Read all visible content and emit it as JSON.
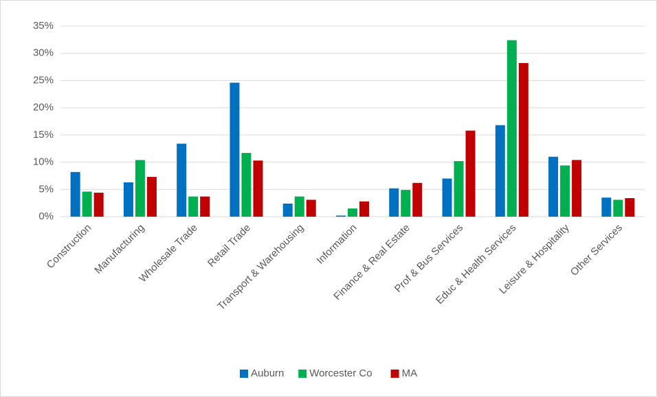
{
  "chart_data": {
    "type": "bar",
    "categories": [
      "Construction",
      "Manufacturing",
      "Wholesale Trade",
      "Retail Trade",
      "Transport & Warehousing",
      "Information",
      "Finance & Real Estate",
      "Prof & Bus Services",
      "Educ & Health Services",
      "Leisure & Hospitality",
      "Other Services"
    ],
    "series": [
      {
        "name": "Auburn",
        "color": "#0070c0",
        "values": [
          8.2,
          6.3,
          13.4,
          24.6,
          2.4,
          0.2,
          5.2,
          7.0,
          16.8,
          11.0,
          3.5
        ]
      },
      {
        "name": "Worcester Co",
        "color": "#00b050",
        "values": [
          4.6,
          10.4,
          3.7,
          11.7,
          3.7,
          1.5,
          4.9,
          10.2,
          32.4,
          9.4,
          3.1
        ]
      },
      {
        "name": "MA",
        "color": "#c00000",
        "values": [
          4.4,
          7.3,
          3.7,
          10.3,
          3.1,
          2.8,
          6.2,
          15.8,
          28.2,
          10.4,
          3.4
        ]
      }
    ],
    "ylim": [
      0,
      35
    ],
    "yticks": [
      {
        "value": 0,
        "label": "0%"
      },
      {
        "value": 5,
        "label": "5%"
      },
      {
        "value": 10,
        "label": "10%"
      },
      {
        "value": 15,
        "label": "15%"
      },
      {
        "value": 20,
        "label": "20%"
      },
      {
        "value": 25,
        "label": "25%"
      },
      {
        "value": 30,
        "label": "30%"
      },
      {
        "value": 35,
        "label": "35%"
      }
    ],
    "grid": true,
    "legend": "bottom"
  }
}
